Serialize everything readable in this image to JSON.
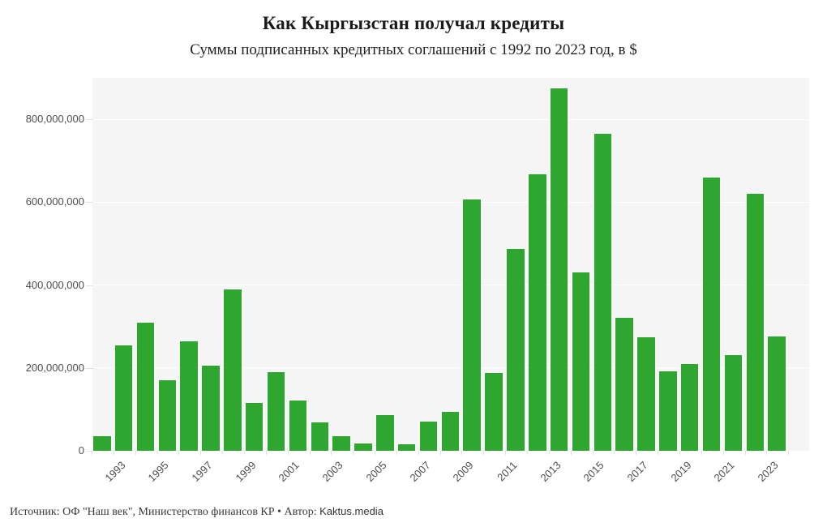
{
  "page": {
    "title": "Как Кыргызстан получал кредиты",
    "subtitle": "Суммы подписанных кредитных соглашений с 1992 по 2023 год, в $",
    "footer": {
      "source_prefix": "Источник: ОФ \"Наш век\", Министерство финансов КР • Автор: ",
      "author": "Kaktus.media"
    }
  },
  "colors": {
    "bar": "#2fa630",
    "plot_background": "#f5f5f5",
    "gridline": "#ffffff",
    "axis_text": "#4d4d4d",
    "title_text": "#1a1a1a"
  },
  "chart_data": {
    "type": "bar",
    "title": "Как Кыргызстан получал кредиты",
    "subtitle": "Суммы подписанных кредитных соглашений с 1992 по 2023 год, в $",
    "categories": [
      1992,
      1993,
      1994,
      1995,
      1996,
      1997,
      1998,
      1999,
      2000,
      2001,
      2002,
      2003,
      2004,
      2005,
      2006,
      2007,
      2008,
      2009,
      2010,
      2011,
      2012,
      2013,
      2014,
      2015,
      2016,
      2017,
      2018,
      2019,
      2020,
      2021,
      2022,
      2023
    ],
    "values": [
      36000000,
      255000000,
      310000000,
      170000000,
      265000000,
      205000000,
      390000000,
      115000000,
      190000000,
      122000000,
      68000000,
      36000000,
      18000000,
      87000000,
      16000000,
      70000000,
      93000000,
      606000000,
      188000000,
      488000000,
      668000000,
      875000000,
      430000000,
      765000000,
      320000000,
      273000000,
      192000000,
      210000000,
      659000000,
      230000000,
      621000000,
      275000000
    ],
    "xlabel": "",
    "ylabel": "",
    "ylim": [
      0,
      900000000
    ],
    "yticks": [
      0,
      200000000,
      400000000,
      600000000,
      800000000
    ],
    "ytick_labels": [
      "0",
      "200,000,000",
      "400,000,000",
      "600,000,000",
      "800,000,000"
    ],
    "xtick_labels": [
      "1993",
      "1995",
      "1997",
      "1999",
      "2001",
      "2003",
      "2005",
      "2007",
      "2009",
      "2011",
      "2013",
      "2015",
      "2017",
      "2019",
      "2021",
      "2023"
    ],
    "grid": true,
    "legend": false
  }
}
